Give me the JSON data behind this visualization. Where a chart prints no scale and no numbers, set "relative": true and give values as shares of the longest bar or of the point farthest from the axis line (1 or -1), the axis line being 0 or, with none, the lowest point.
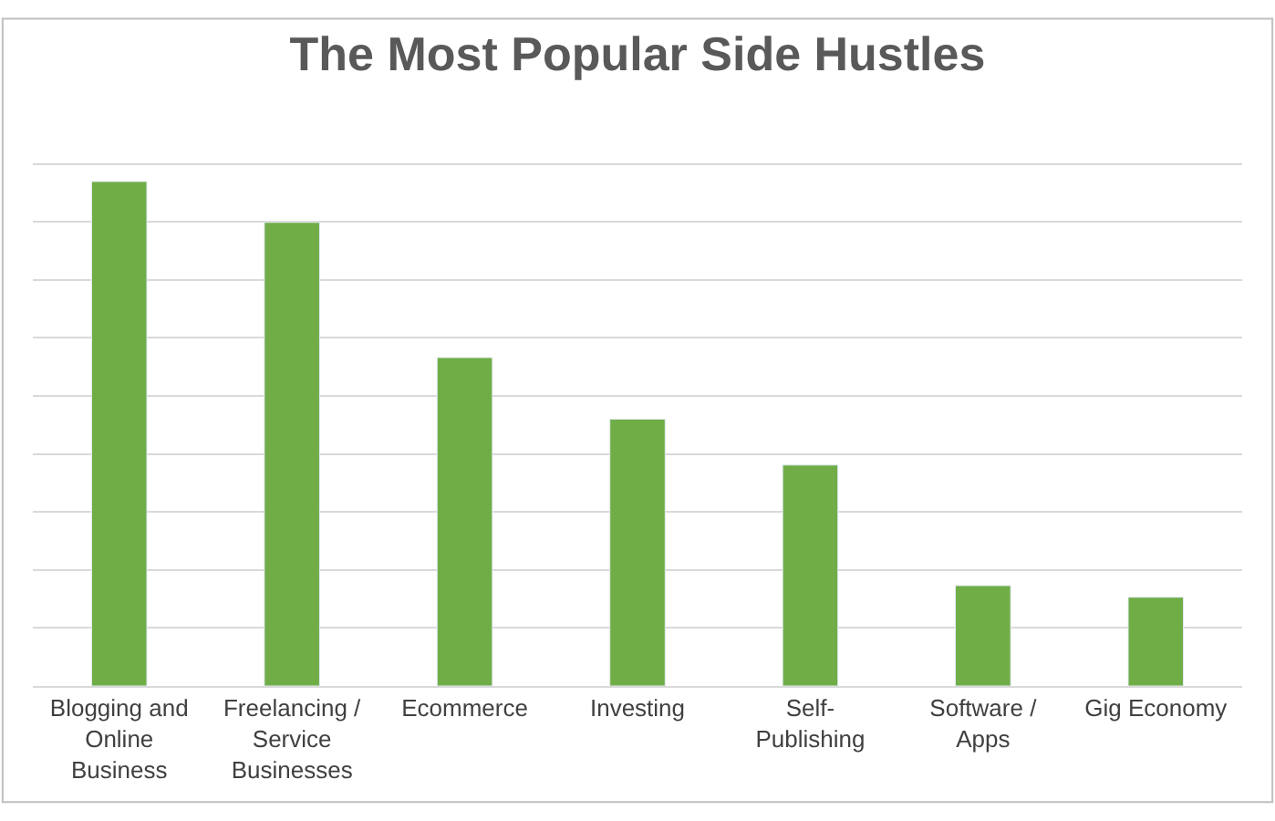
{
  "chart_data": {
    "type": "bar",
    "title": "The Most Popular Side Hustles",
    "categories": [
      "Blogging and Online Business",
      "Freelancing / Service Businesses",
      "Ecommerce",
      "Investing",
      "Self-Publishing",
      "Software / Apps",
      "Gig Economy"
    ],
    "values": [
      1,
      0.919,
      0.651,
      0.529,
      0.438,
      0.199,
      0.176
    ],
    "color": "#70ad47",
    "relative": true,
    "grid": "y"
  }
}
